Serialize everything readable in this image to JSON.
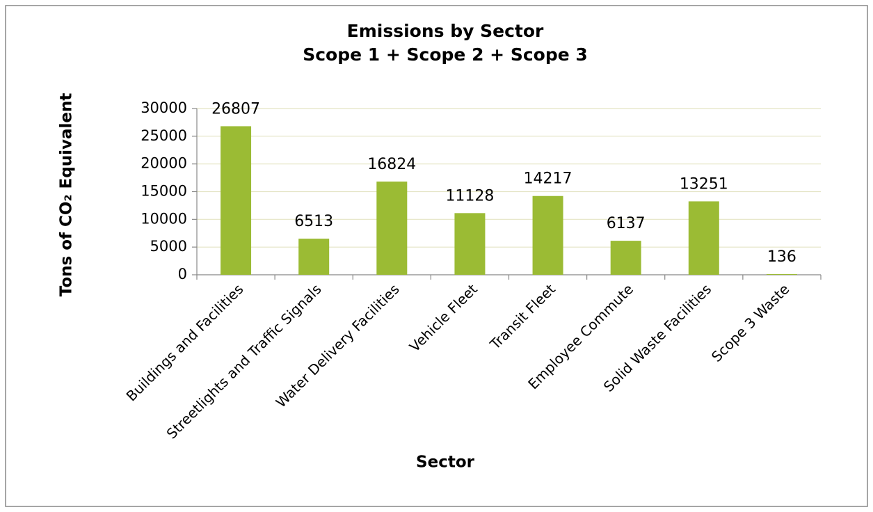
{
  "chart_data": {
    "type": "bar",
    "title": "Emissions by Sector",
    "subtitle": "Scope 1 + Scope 2 + Scope 3",
    "x_label": "Sector",
    "y_label": "Tons of CO₂ Equivalent",
    "categories": [
      "Buildings and Facilities",
      "Streetlights and Traffic Signals",
      "Water Delivery Facilities",
      "Vehicle Fleet",
      "Transit Fleet",
      "Employee Commute",
      "Solid Waste Facilities",
      "Scope 3 Waste"
    ],
    "values": [
      26807,
      6513,
      16824,
      11128,
      14217,
      6137,
      13251,
      136
    ],
    "color": "#9bbb34",
    "ylim": [
      0,
      30000
    ],
    "yticks": [
      0,
      5000,
      10000,
      15000,
      20000,
      25000,
      30000
    ],
    "grid": true
  }
}
